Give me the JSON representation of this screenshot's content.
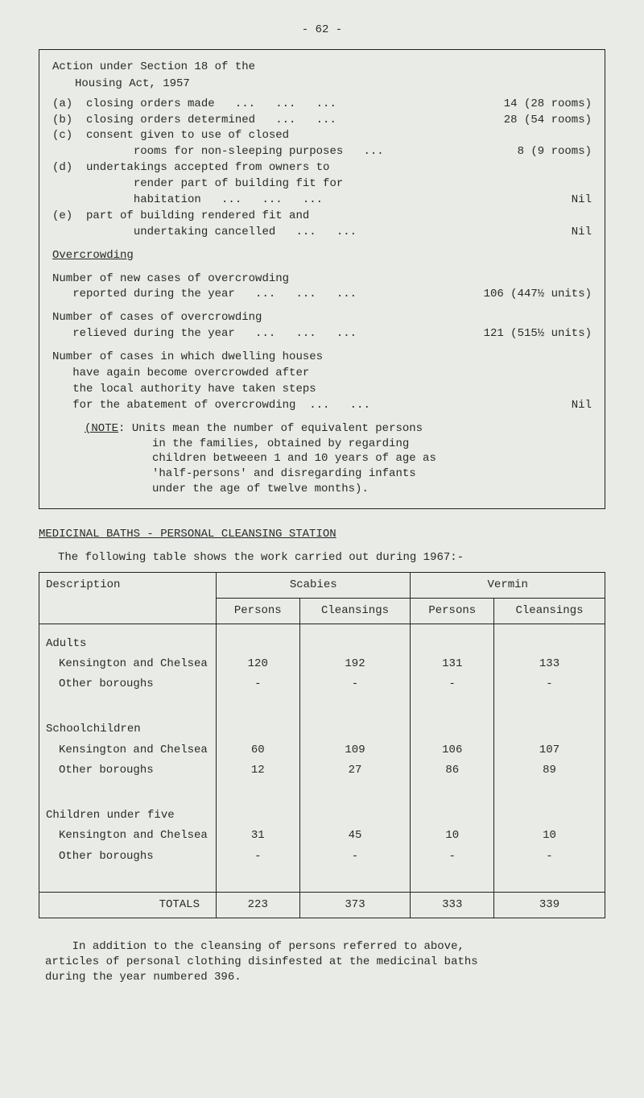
{
  "page_number": "- 62 -",
  "box": {
    "title1": "Action under Section 18 of the",
    "title2": "Housing Act, 1957",
    "items": [
      {
        "mark": "(a)",
        "text": "closing orders made",
        "dots": "...   ...   ...",
        "value": "14 (28 rooms)"
      },
      {
        "mark": "(b)",
        "text": "closing orders determined",
        "dots": "...   ...",
        "value": "28 (54 rooms)"
      },
      {
        "mark": "(c)",
        "text": "consent given to use of closed",
        "dots": "",
        "value": ""
      },
      {
        "mark": "",
        "text": "rooms for non-sleeping purposes",
        "dots": "...",
        "value": "8 (9 rooms)",
        "extra_indent": true
      },
      {
        "mark": "(d)",
        "text": "undertakings accepted from owners to",
        "dots": "",
        "value": ""
      },
      {
        "mark": "",
        "text": "render part of building fit for",
        "dots": "",
        "value": "",
        "extra_indent": true
      },
      {
        "mark": "",
        "text": "habitation",
        "dots": "...   ...   ...",
        "value": "Nil",
        "extra_indent": true
      },
      {
        "mark": "(e)",
        "text": "part of building rendered fit and",
        "dots": "",
        "value": ""
      },
      {
        "mark": "",
        "text": "undertaking cancelled",
        "dots": "...   ...",
        "value": "Nil",
        "extra_indent": true
      }
    ],
    "overcrowding_label": "Overcrowding",
    "blocks": [
      {
        "lines": [
          "Number of new cases of overcrowding",
          "reported during the year   ...   ...   ..."
        ],
        "value": "106 (447½ units)"
      },
      {
        "lines": [
          "Number of cases of overcrowding",
          "relieved during the year   ...   ...   ..."
        ],
        "value": "121 (515½ units)"
      },
      {
        "lines": [
          "Number of cases in which dwelling houses",
          "have again become overcrowded after",
          "the local authority have taken steps",
          "for the abatement of overcrowding  ...   ..."
        ],
        "value": "Nil"
      }
    ],
    "note_label": "(NOTE:",
    "note_lines": [
      "Units mean the number of equivalent persons",
      "in the families, obtained by regarding",
      "children betweeen 1 and 10 years of age as",
      "'half-persons' and disregarding infants",
      "under the age of twelve months)."
    ]
  },
  "baths_heading": "MEDICINAL BATHS - PERSONAL CLEANSING STATION",
  "baths_intro": "The following table shows the work carried out during 1967:-",
  "table": {
    "col_desc": "Description",
    "scabies": "Scabies",
    "vermin": "Vermin",
    "persons": "Persons",
    "cleansings": "Cleansings",
    "groups": [
      {
        "label": "Adults",
        "rows": [
          {
            "name": "Kensington and Chelsea",
            "sp": "120",
            "sc": "192",
            "vp": "131",
            "vc": "133"
          },
          {
            "name": "Other boroughs",
            "sp": "-",
            "sc": "-",
            "vp": "-",
            "vc": "-"
          }
        ]
      },
      {
        "label": "Schoolchildren",
        "rows": [
          {
            "name": "Kensington and Chelsea",
            "sp": "60",
            "sc": "109",
            "vp": "106",
            "vc": "107"
          },
          {
            "name": "Other boroughs",
            "sp": "12",
            "sc": "27",
            "vp": "86",
            "vc": "89"
          }
        ]
      },
      {
        "label": "Children under five",
        "rows": [
          {
            "name": "Kensington and Chelsea",
            "sp": "31",
            "sc": "45",
            "vp": "10",
            "vc": "10"
          },
          {
            "name": "Other boroughs",
            "sp": "-",
            "sc": "-",
            "vp": "-",
            "vc": "-"
          }
        ]
      }
    ],
    "totals_label": "TOTALS",
    "totals": {
      "sp": "223",
      "sc": "373",
      "vp": "333",
      "vc": "339"
    }
  },
  "footnote_lines": [
    "In addition to the cleansing of persons referred to above,",
    "articles of personal clothing disinfested at the medicinal baths",
    "during the year numbered 396."
  ]
}
